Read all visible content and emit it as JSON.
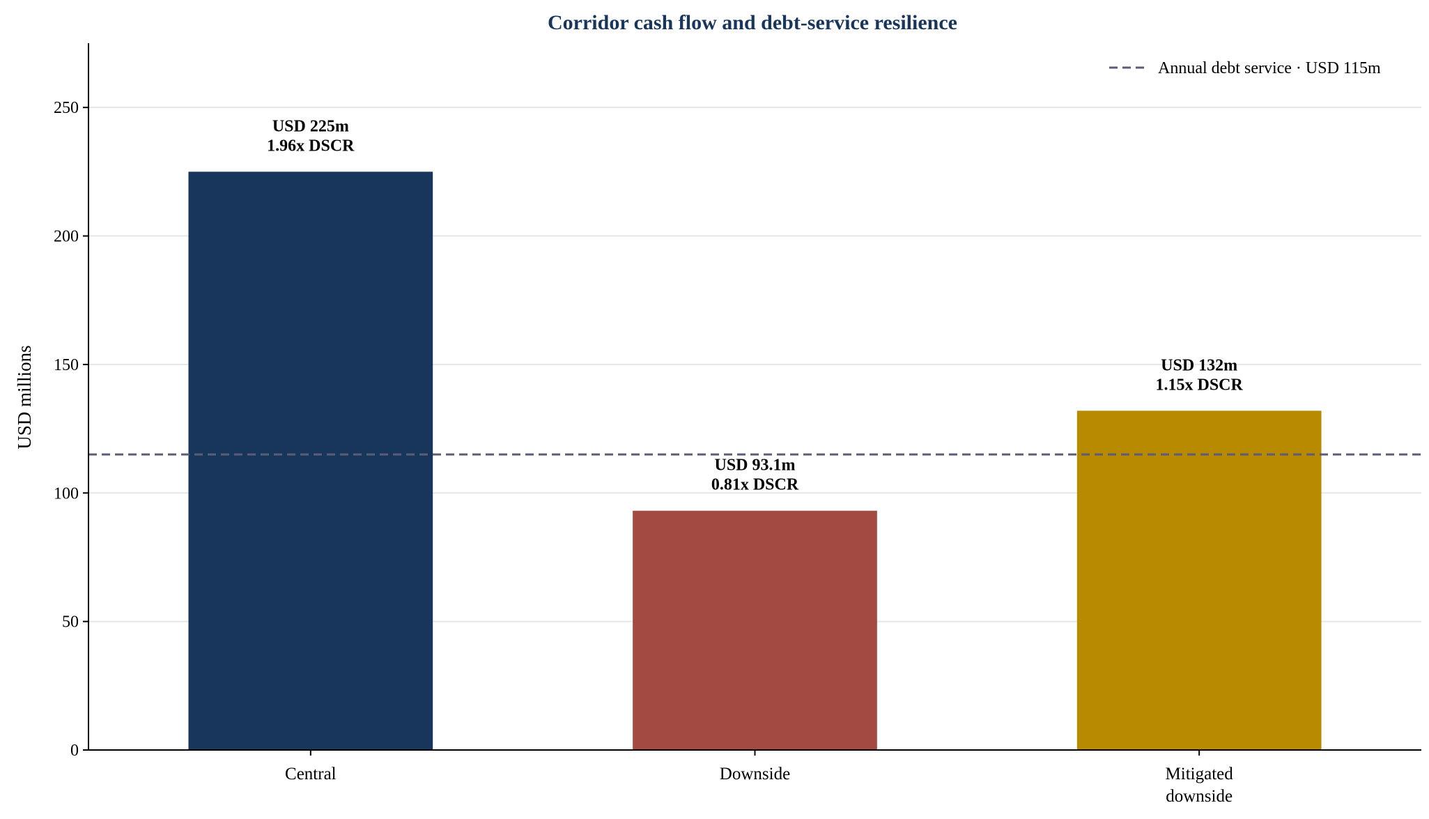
{
  "chart_data": {
    "type": "bar",
    "title": "Corridor cash flow and debt-service resilience",
    "xlabel": "",
    "ylabel": "USD millions",
    "ylim": [
      0,
      275
    ],
    "yticks": [
      0,
      50,
      100,
      150,
      200,
      250
    ],
    "grid": "horizontal",
    "legend_position": "top-right",
    "categories": [
      [
        "Central"
      ],
      [
        "Downside"
      ],
      [
        "Mitigated",
        "downside"
      ]
    ],
    "values": [
      225,
      93.1,
      132
    ],
    "bar_labels": [
      [
        "USD 225m",
        "1.96x DSCR"
      ],
      [
        "USD 93.1m",
        "0.81x DSCR"
      ],
      [
        "USD 132m",
        "1.15x DSCR"
      ]
    ],
    "bar_colors": [
      "#18365c",
      "#a34b42",
      "#b88a00"
    ],
    "reference_line": {
      "value": 115,
      "label": "Annual debt service · USD 115m",
      "color": "#5a5c78",
      "style": "dashed"
    },
    "title_color": "#18365c"
  }
}
